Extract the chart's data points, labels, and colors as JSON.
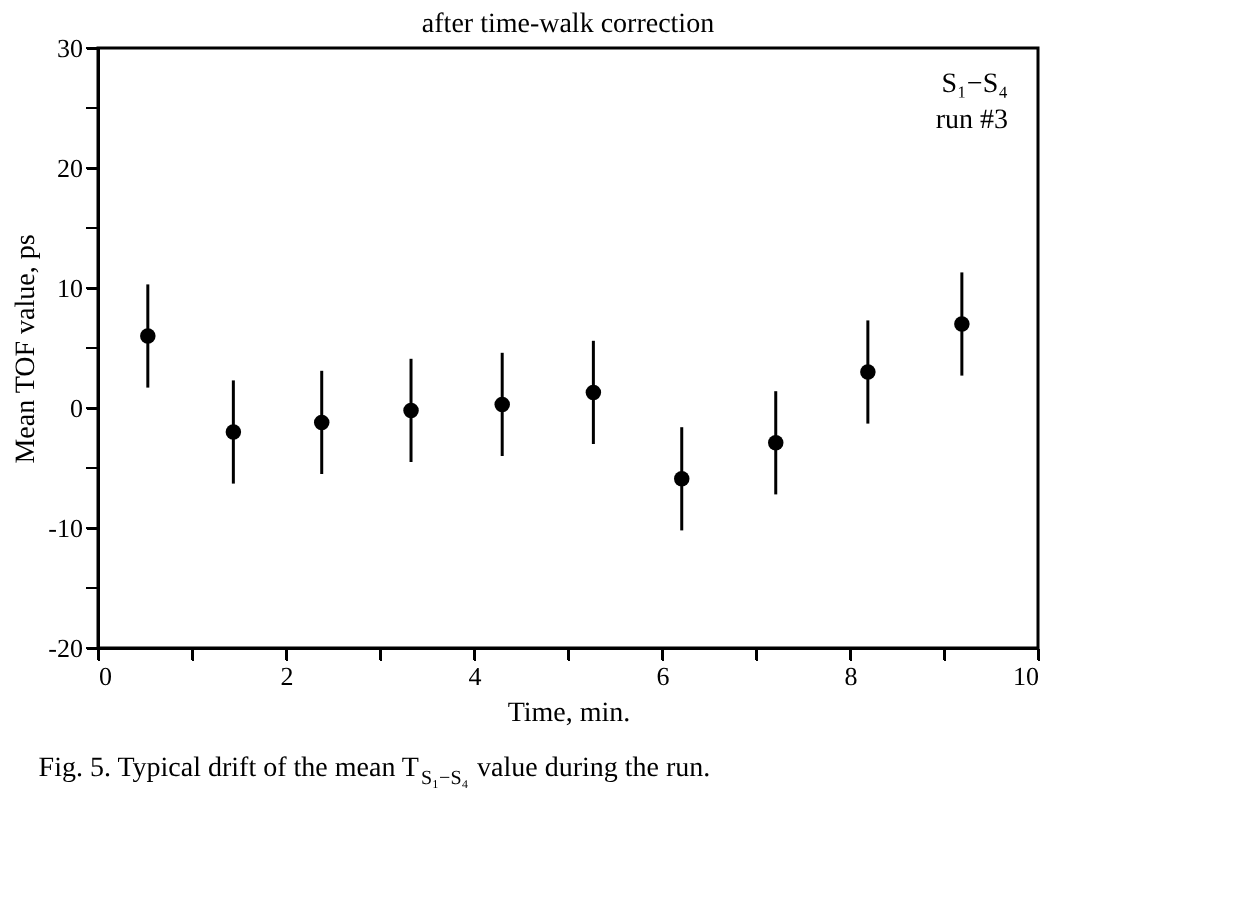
{
  "chart_data": {
    "type": "scatter",
    "xlabel": "Time, min.",
    "ylabel": "Mean TOF value, ps",
    "x": [
      0.53,
      1.44,
      2.38,
      3.33,
      4.3,
      5.27,
      6.21,
      7.21,
      8.19,
      9.19
    ],
    "values": [
      6.0,
      -2.0,
      -1.2,
      -0.2,
      0.3,
      1.3,
      -5.9,
      -2.9,
      3.0,
      7.0
    ],
    "errors": [
      4.3,
      4.3,
      4.3,
      4.3,
      4.3,
      4.3,
      4.3,
      4.3,
      4.3,
      4.3
    ],
    "color": "#000000",
    "marker": "circle",
    "grid": false,
    "xlim": [
      0,
      10
    ],
    "ylim": [
      -20,
      30
    ],
    "xticks": [
      0,
      {
        "value": 1,
        "label": null
      },
      2,
      {
        "value": 3,
        "label": null
      },
      4,
      {
        "value": 5,
        "label": null
      },
      6,
      {
        "value": 7,
        "label": null
      },
      8,
      {
        "value": 9,
        "label": null
      },
      10
    ],
    "yticks": [
      -20,
      {
        "value": -15,
        "label": null
      },
      -10,
      {
        "value": -5,
        "label": null
      },
      0,
      {
        "value": 5,
        "label": null
      },
      10,
      {
        "value": 15,
        "label": null
      },
      20,
      {
        "value": 25,
        "label": null
      },
      30
    ],
    "annotations": [
      "after time-walk correction",
      "S₁−S₄",
      "run #3",
      "Fig. 5. Typical drift of the mean T$_{S₁−S₄}$ value during the run."
    ]
  }
}
